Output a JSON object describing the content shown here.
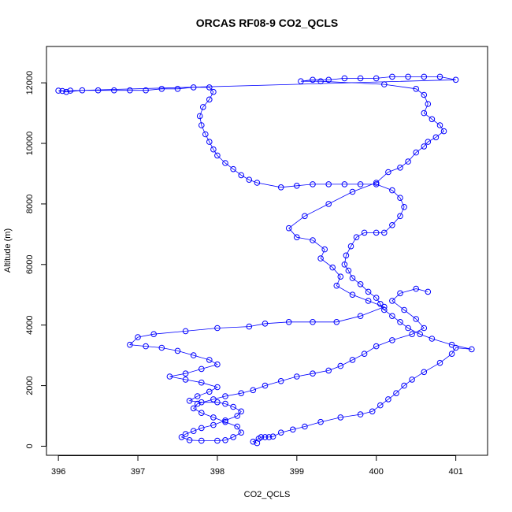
{
  "chart_data": {
    "type": "scatter",
    "title": "ORCAS RF08-9 CO2_QCLS",
    "xlabel": "CO2_QCLS",
    "ylabel": "Altitude (m)",
    "xlim": [
      395.85,
      401.4
    ],
    "ylim": [
      -300,
      13200
    ],
    "xticks": [
      396,
      397,
      398,
      399,
      400,
      401
    ],
    "yticks": [
      0,
      2000,
      4000,
      6000,
      8000,
      10000,
      12000
    ],
    "grid": false,
    "colors": {
      "series": "#0000ff"
    },
    "series": [
      {
        "style": "line+points",
        "points": [
          [
            398.5,
            100
          ],
          [
            398.45,
            150
          ],
          [
            398.52,
            250
          ],
          [
            398.55,
            300
          ],
          [
            398.6,
            300
          ],
          [
            398.65,
            300
          ],
          [
            398.7,
            320
          ],
          [
            398.8,
            450
          ],
          [
            398.95,
            550
          ],
          [
            399.1,
            650
          ],
          [
            399.3,
            800
          ],
          [
            399.55,
            950
          ],
          [
            399.8,
            1050
          ],
          [
            399.95,
            1150
          ],
          [
            400.05,
            1350
          ],
          [
            400.15,
            1550
          ],
          [
            400.25,
            1750
          ],
          [
            400.35,
            2000
          ],
          [
            400.45,
            2200
          ],
          [
            400.6,
            2450
          ],
          [
            400.8,
            2750
          ],
          [
            400.95,
            3050
          ],
          [
            401.0,
            3250
          ],
          [
            401.2,
            3200
          ],
          [
            400.95,
            3350
          ],
          [
            400.7,
            3550
          ],
          [
            400.55,
            3700
          ],
          [
            400.4,
            3900
          ],
          [
            400.3,
            4100
          ],
          [
            400.2,
            4300
          ],
          [
            400.1,
            4500
          ],
          [
            400.05,
            4700
          ],
          [
            400.0,
            4900
          ],
          [
            399.9,
            5100
          ],
          [
            399.8,
            5350
          ],
          [
            399.7,
            5550
          ],
          [
            399.65,
            5800
          ],
          [
            399.6,
            6000
          ],
          [
            399.62,
            6300
          ],
          [
            399.68,
            6600
          ],
          [
            399.75,
            6900
          ],
          [
            399.85,
            7050
          ],
          [
            400.0,
            7050
          ],
          [
            400.1,
            7050
          ],
          [
            400.2,
            7300
          ],
          [
            400.3,
            7600
          ],
          [
            400.35,
            7900
          ],
          [
            400.3,
            8200
          ],
          [
            400.2,
            8450
          ],
          [
            400.0,
            8650
          ],
          [
            399.8,
            8650
          ],
          [
            399.6,
            8650
          ],
          [
            399.4,
            8650
          ],
          [
            399.2,
            8650
          ],
          [
            399.0,
            8600
          ],
          [
            398.8,
            8550
          ],
          [
            398.5,
            8700
          ],
          [
            398.4,
            8800
          ],
          [
            398.3,
            8950
          ],
          [
            398.2,
            9150
          ],
          [
            398.1,
            9350
          ],
          [
            398.0,
            9600
          ],
          [
            397.95,
            9800
          ],
          [
            397.9,
            10050
          ],
          [
            397.85,
            10300
          ],
          [
            397.8,
            10600
          ],
          [
            397.78,
            10900
          ],
          [
            397.82,
            11200
          ],
          [
            397.9,
            11450
          ],
          [
            397.95,
            11700
          ],
          [
            397.9,
            11850
          ],
          [
            397.7,
            11850
          ],
          [
            397.5,
            11800
          ],
          [
            397.3,
            11800
          ],
          [
            397.1,
            11750
          ],
          [
            396.9,
            11750
          ],
          [
            396.7,
            11750
          ],
          [
            396.5,
            11750
          ],
          [
            396.3,
            11750
          ],
          [
            396.1,
            11700
          ],
          [
            396.05,
            11730
          ],
          [
            396.0,
            11740
          ],
          [
            396.15,
            11740
          ],
          [
            401.0,
            12100
          ],
          [
            400.8,
            12200
          ],
          [
            400.6,
            12200
          ],
          [
            400.4,
            12200
          ],
          [
            400.2,
            12200
          ],
          [
            400.0,
            12150
          ],
          [
            399.8,
            12150
          ],
          [
            399.6,
            12150
          ],
          [
            399.4,
            12100
          ],
          [
            399.2,
            12100
          ],
          [
            399.05,
            12050
          ],
          [
            399.3,
            12050
          ],
          [
            400.1,
            11950
          ],
          [
            400.5,
            11800
          ],
          [
            400.6,
            11600
          ],
          [
            400.65,
            11300
          ],
          [
            400.6,
            11000
          ],
          [
            400.7,
            10800
          ],
          [
            400.8,
            10600
          ],
          [
            400.85,
            10400
          ],
          [
            400.75,
            10200
          ],
          [
            400.65,
            10050
          ],
          [
            400.6,
            9900
          ],
          [
            400.5,
            9700
          ],
          [
            400.4,
            9400
          ],
          [
            400.3,
            9200
          ],
          [
            400.15,
            9050
          ],
          [
            400.0,
            8700
          ],
          [
            399.7,
            8400
          ],
          [
            399.4,
            8000
          ],
          [
            399.1,
            7600
          ],
          [
            398.9,
            7200
          ],
          [
            399.0,
            6900
          ],
          [
            399.2,
            6800
          ],
          [
            399.35,
            6500
          ],
          [
            399.3,
            6200
          ],
          [
            399.45,
            5900
          ],
          [
            399.55,
            5600
          ],
          [
            399.5,
            5300
          ],
          [
            399.7,
            5000
          ],
          [
            399.9,
            4800
          ],
          [
            400.1,
            4600
          ],
          [
            399.8,
            4300
          ],
          [
            399.5,
            4100
          ],
          [
            399.2,
            4100
          ],
          [
            398.9,
            4100
          ],
          [
            398.6,
            4050
          ],
          [
            398.4,
            3950
          ],
          [
            398.0,
            3900
          ],
          [
            397.6,
            3800
          ],
          [
            397.2,
            3700
          ],
          [
            397.0,
            3600
          ],
          [
            396.9,
            3350
          ],
          [
            397.1,
            3300
          ],
          [
            397.3,
            3250
          ],
          [
            397.5,
            3150
          ],
          [
            397.7,
            3000
          ],
          [
            397.9,
            2850
          ],
          [
            398.0,
            2700
          ],
          [
            397.8,
            2550
          ],
          [
            397.6,
            2400
          ],
          [
            397.4,
            2300
          ],
          [
            397.6,
            2200
          ],
          [
            397.8,
            2100
          ],
          [
            398.0,
            1950
          ],
          [
            397.9,
            1800
          ],
          [
            397.75,
            1650
          ],
          [
            397.65,
            1500
          ],
          [
            397.8,
            1450
          ],
          [
            398.0,
            1450
          ],
          [
            398.1,
            1400
          ],
          [
            398.2,
            1300
          ],
          [
            398.3,
            1150
          ],
          [
            398.25,
            1000
          ],
          [
            398.1,
            850
          ],
          [
            397.95,
            700
          ],
          [
            397.8,
            600
          ],
          [
            397.7,
            500
          ],
          [
            397.6,
            400
          ],
          [
            397.55,
            300
          ],
          [
            397.65,
            200
          ],
          [
            397.8,
            180
          ],
          [
            398.0,
            180
          ],
          [
            398.1,
            200
          ],
          [
            398.2,
            300
          ],
          [
            398.3,
            450
          ],
          [
            398.25,
            650
          ],
          [
            398.1,
            800
          ],
          [
            397.95,
            950
          ],
          [
            397.8,
            1100
          ],
          [
            397.7,
            1250
          ],
          [
            397.75,
            1400
          ],
          [
            397.95,
            1550
          ],
          [
            398.1,
            1650
          ],
          [
            398.3,
            1750
          ],
          [
            398.45,
            1850
          ],
          [
            398.6,
            2000
          ],
          [
            398.8,
            2150
          ],
          [
            399.0,
            2300
          ],
          [
            399.2,
            2400
          ],
          [
            399.4,
            2500
          ],
          [
            399.55,
            2650
          ],
          [
            399.7,
            2850
          ],
          [
            399.85,
            3050
          ],
          [
            400.0,
            3300
          ],
          [
            400.2,
            3500
          ],
          [
            400.45,
            3700
          ],
          [
            400.6,
            3900
          ],
          [
            400.5,
            4200
          ],
          [
            400.35,
            4500
          ],
          [
            400.2,
            4800
          ],
          [
            400.3,
            5050
          ],
          [
            400.5,
            5200
          ],
          [
            400.65,
            5100
          ]
        ]
      }
    ]
  }
}
